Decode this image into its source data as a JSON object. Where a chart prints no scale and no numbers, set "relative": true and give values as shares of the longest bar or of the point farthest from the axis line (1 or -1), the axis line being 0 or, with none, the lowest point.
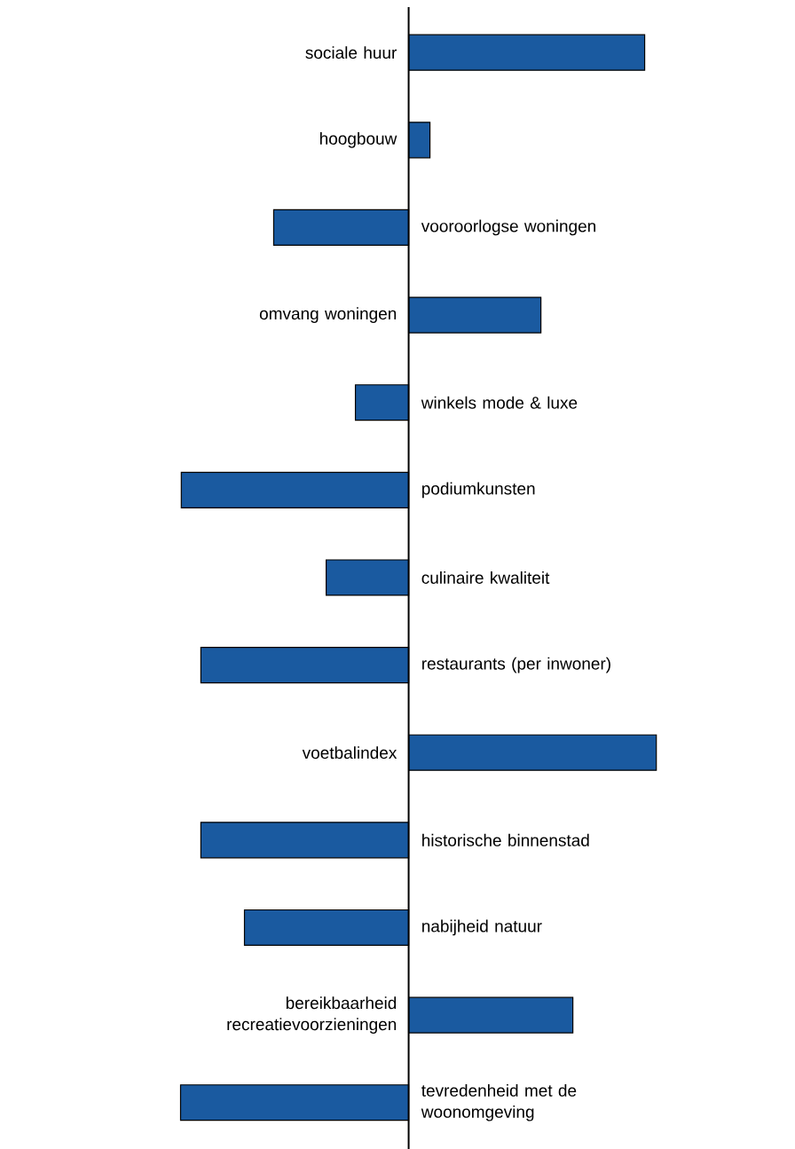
{
  "chart_data": {
    "type": "bar",
    "orientation": "horizontal",
    "relative": true,
    "color": "#1a5aa0",
    "categories": [
      "sociale huur",
      "hoogbouw",
      "vooroorlogse woningen",
      "omvang woningen",
      "winkels mode & luxe",
      "podiumkunsten",
      "culinaire kwaliteit",
      "restaurants (per inwoner)",
      "voetbalindex",
      "historische binnenstad",
      "nabijheid natuur",
      "bereikbaarheid recreatievoorzieningen",
      "tevredenheid met de woonomgeving"
    ],
    "values": [
      0.953,
      0.086,
      -0.545,
      0.534,
      -0.215,
      -0.918,
      -0.333,
      -0.839,
      1,
      -0.839,
      -0.663,
      0.663,
      -0.921
    ]
  }
}
